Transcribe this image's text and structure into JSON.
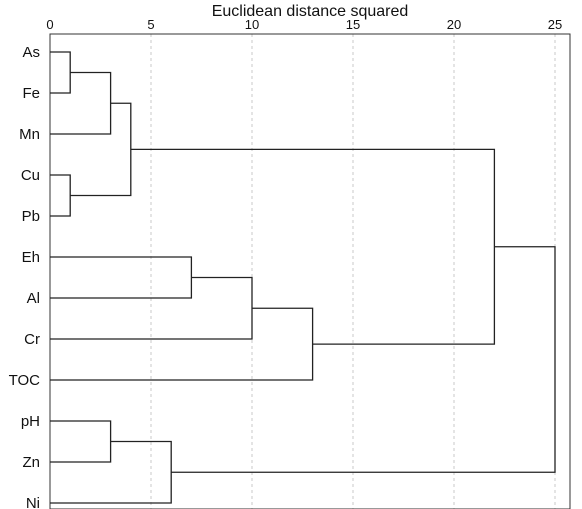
{
  "chart_data": {
    "type": "dendrogram",
    "title": "",
    "xlabel": "Euclidean distance squared",
    "ylabel": "",
    "xlim": [
      0,
      25
    ],
    "x_ticks": [
      "0",
      "5",
      "10",
      "15",
      "20",
      "25"
    ],
    "x_tick_values": [
      0,
      5,
      10,
      15,
      20,
      25
    ],
    "grid": "vertical dashed",
    "colors": {
      "line": "#222222",
      "grid": "#c8c8c8",
      "frame": "#333333"
    },
    "leaves": [
      "As",
      "Fe",
      "Mn",
      "Cu",
      "Pb",
      "Eh",
      "Al",
      "Cr",
      "TOC",
      "pH",
      "Zn",
      "Ni"
    ],
    "merges": [
      {
        "a": "As",
        "b": "Fe",
        "distance": 1
      },
      {
        "a": "Cu",
        "b": "Pb",
        "distance": 1
      },
      {
        "a": "As-Fe",
        "b": "Mn",
        "distance": 3
      },
      {
        "a": "As-Fe-Mn",
        "b": "Cu-Pb",
        "distance": 4
      },
      {
        "a": "Eh",
        "b": "Al",
        "distance": 7
      },
      {
        "a": "Eh-Al",
        "b": "Cr",
        "distance": 10
      },
      {
        "a": "Eh-Al-Cr",
        "b": "TOC",
        "distance": 13
      },
      {
        "a": "As-Fe-Mn-Cu-Pb",
        "b": "Eh-Al-Cr-TOC",
        "distance": 22
      },
      {
        "a": "pH",
        "b": "Zn",
        "distance": 3
      },
      {
        "a": "pH-Zn",
        "b": "Ni",
        "distance": 6
      },
      {
        "a": "As-Fe-Mn-Cu-Pb-Eh-Al-Cr-TOC",
        "b": "pH-Zn-Ni",
        "distance": 25
      }
    ]
  }
}
